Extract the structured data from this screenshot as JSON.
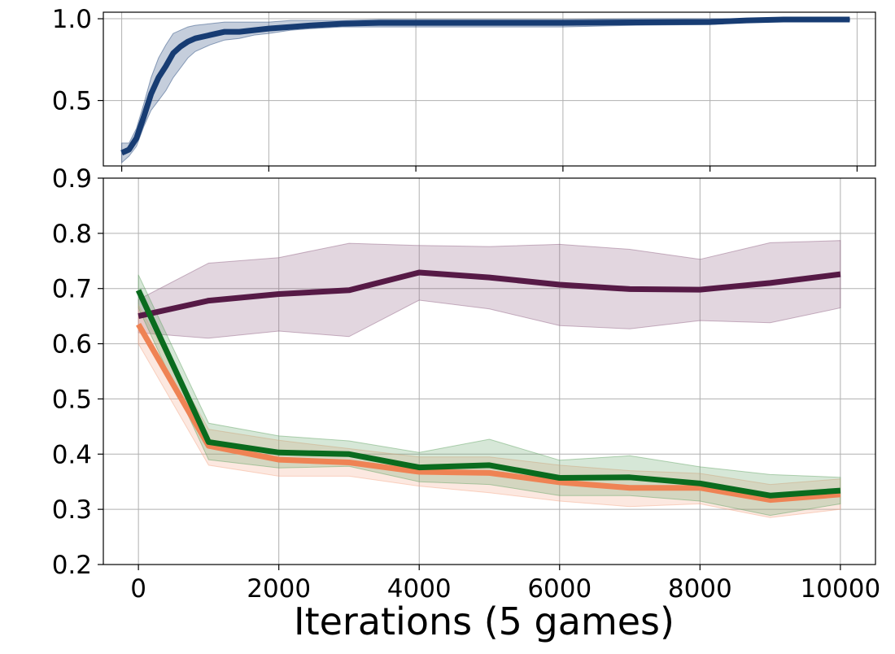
{
  "chart_data": [
    {
      "type": "line",
      "title": "",
      "xlabel": "",
      "ylabel": "",
      "xlim": [
        -250,
        10250
      ],
      "ylim": [
        0.1,
        1.04
      ],
      "yticks": [
        0.5,
        1.0
      ],
      "ytick_labels": [
        "0.5",
        "1.0"
      ],
      "xticks": [
        0,
        2000,
        4000,
        6000,
        8000,
        10000
      ],
      "grid": true,
      "legend": "none",
      "series": [
        {
          "color": "#173c73",
          "band_color": "#173c73",
          "x": [
            0,
            100,
            200,
            300,
            400,
            500,
            600,
            700,
            800,
            900,
            1000,
            1200,
            1400,
            1600,
            1800,
            2000,
            2300,
            2600,
            3000,
            3500,
            4000,
            5000,
            6000,
            7000,
            8000,
            8500,
            9000,
            9500,
            9900
          ],
          "y": [
            0.18,
            0.2,
            0.27,
            0.4,
            0.54,
            0.64,
            0.71,
            0.79,
            0.83,
            0.86,
            0.88,
            0.9,
            0.92,
            0.92,
            0.93,
            0.94,
            0.95,
            0.96,
            0.97,
            0.975,
            0.975,
            0.975,
            0.975,
            0.978,
            0.98,
            0.99,
            0.995,
            0.995,
            0.995
          ],
          "lower": [
            0.12,
            0.16,
            0.22,
            0.34,
            0.44,
            0.5,
            0.56,
            0.64,
            0.7,
            0.76,
            0.8,
            0.84,
            0.87,
            0.88,
            0.9,
            0.91,
            0.93,
            0.94,
            0.95,
            0.95,
            0.95,
            0.95,
            0.95,
            0.96,
            0.965,
            0.98,
            0.99,
            0.99,
            0.99
          ],
          "upper": [
            0.24,
            0.24,
            0.33,
            0.48,
            0.64,
            0.76,
            0.84,
            0.91,
            0.93,
            0.95,
            0.96,
            0.97,
            0.98,
            0.98,
            0.98,
            0.98,
            0.99,
            0.99,
            0.99,
            0.995,
            0.995,
            0.995,
            0.995,
            1.0,
            1.0,
            1.0,
            1.0,
            1.0,
            1.0
          ]
        }
      ]
    },
    {
      "type": "line",
      "title": "",
      "xlabel": "Iterations (5 games)",
      "ylabel": "",
      "xlim": [
        -500,
        10500
      ],
      "ylim": [
        0.2,
        0.9
      ],
      "yticks": [
        0.2,
        0.3,
        0.4,
        0.5,
        0.6,
        0.7,
        0.8,
        0.9
      ],
      "ytick_labels": [
        "0.2",
        "0.3",
        "0.4",
        "0.5",
        "0.6",
        "0.7",
        "0.8",
        "0.9"
      ],
      "xticks": [
        0,
        2000,
        4000,
        6000,
        8000,
        10000
      ],
      "xtick_labels": [
        "0",
        "2000",
        "4000",
        "6000",
        "8000",
        "10000"
      ],
      "grid": true,
      "legend": "none",
      "x": [
        0,
        1000,
        2000,
        3000,
        4000,
        5000,
        6000,
        7000,
        8000,
        9000,
        10000
      ],
      "series": [
        {
          "color": "#561a46",
          "band_color": "#8c5a7e",
          "y": [
            0.65,
            0.678,
            0.69,
            0.697,
            0.729,
            0.72,
            0.707,
            0.699,
            0.698,
            0.71,
            0.726
          ],
          "lower": [
            0.62,
            0.61,
            0.623,
            0.613,
            0.679,
            0.663,
            0.633,
            0.627,
            0.642,
            0.638,
            0.665
          ],
          "upper": [
            0.68,
            0.746,
            0.756,
            0.782,
            0.778,
            0.776,
            0.78,
            0.771,
            0.753,
            0.783,
            0.787
          ]
        },
        {
          "color": "#ef8354",
          "band_color": "#f4a582",
          "y": [
            0.635,
            0.415,
            0.39,
            0.385,
            0.368,
            0.366,
            0.349,
            0.339,
            0.339,
            0.317,
            0.327
          ],
          "lower": [
            0.6,
            0.38,
            0.36,
            0.36,
            0.342,
            0.33,
            0.315,
            0.305,
            0.31,
            0.285,
            0.3
          ],
          "upper": [
            0.67,
            0.445,
            0.425,
            0.41,
            0.395,
            0.395,
            0.38,
            0.37,
            0.365,
            0.345,
            0.355
          ]
        },
        {
          "color": "#0a6b1e",
          "band_color": "#5aa05e",
          "y": [
            0.697,
            0.422,
            0.403,
            0.4,
            0.376,
            0.38,
            0.357,
            0.358,
            0.347,
            0.325,
            0.334
          ],
          "lower": [
            0.665,
            0.39,
            0.375,
            0.378,
            0.35,
            0.345,
            0.325,
            0.325,
            0.315,
            0.289,
            0.31
          ],
          "upper": [
            0.725,
            0.456,
            0.433,
            0.424,
            0.403,
            0.427,
            0.389,
            0.397,
            0.377,
            0.363,
            0.358
          ]
        }
      ]
    }
  ]
}
